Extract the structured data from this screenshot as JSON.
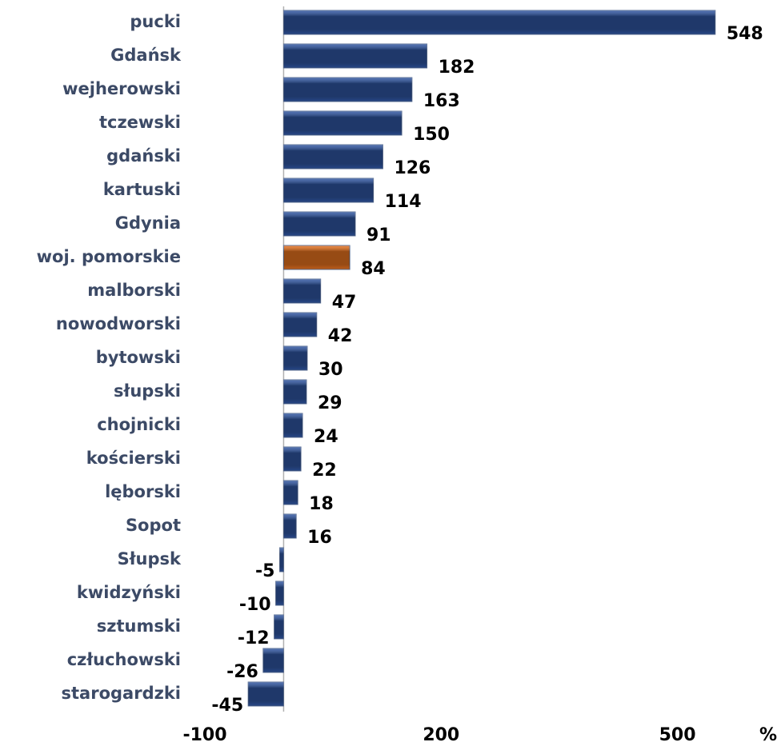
{
  "chart_data": {
    "type": "barh",
    "categories": [
      "pucki",
      "Gdańsk",
      "wejherowski",
      "tczewski",
      "gdański",
      "kartuski",
      "Gdynia",
      "woj. pomorskie",
      "malborski",
      "nowodworski",
      "bytowski",
      "słupski",
      "chojnicki",
      "kościerski",
      "lęborski",
      "Sopot",
      "Słupsk",
      "kwidzyński",
      "sztumski",
      "człuchowski",
      "starogardzki"
    ],
    "values": [
      548,
      182,
      163,
      150,
      126,
      114,
      91,
      84,
      47,
      42,
      30,
      29,
      24,
      22,
      18,
      16,
      -5,
      -10,
      -12,
      -26,
      -45
    ],
    "colors": [
      "#2f56a3",
      "#2f56a3",
      "#2f56a3",
      "#2f56a3",
      "#2f56a3",
      "#2f56a3",
      "#2f56a3",
      "#e8731f",
      "#2f56a3",
      "#2f56a3",
      "#2f56a3",
      "#2f56a3",
      "#2f56a3",
      "#2f56a3",
      "#2f56a3",
      "#2f56a3",
      "#2f56a3",
      "#2f56a3",
      "#2f56a3",
      "#2f56a3",
      "#2f56a3"
    ],
    "xlim": [
      -100,
      600
    ],
    "xticks": [
      -100,
      200,
      500
    ],
    "xlabel": "%",
    "grid": false
  }
}
